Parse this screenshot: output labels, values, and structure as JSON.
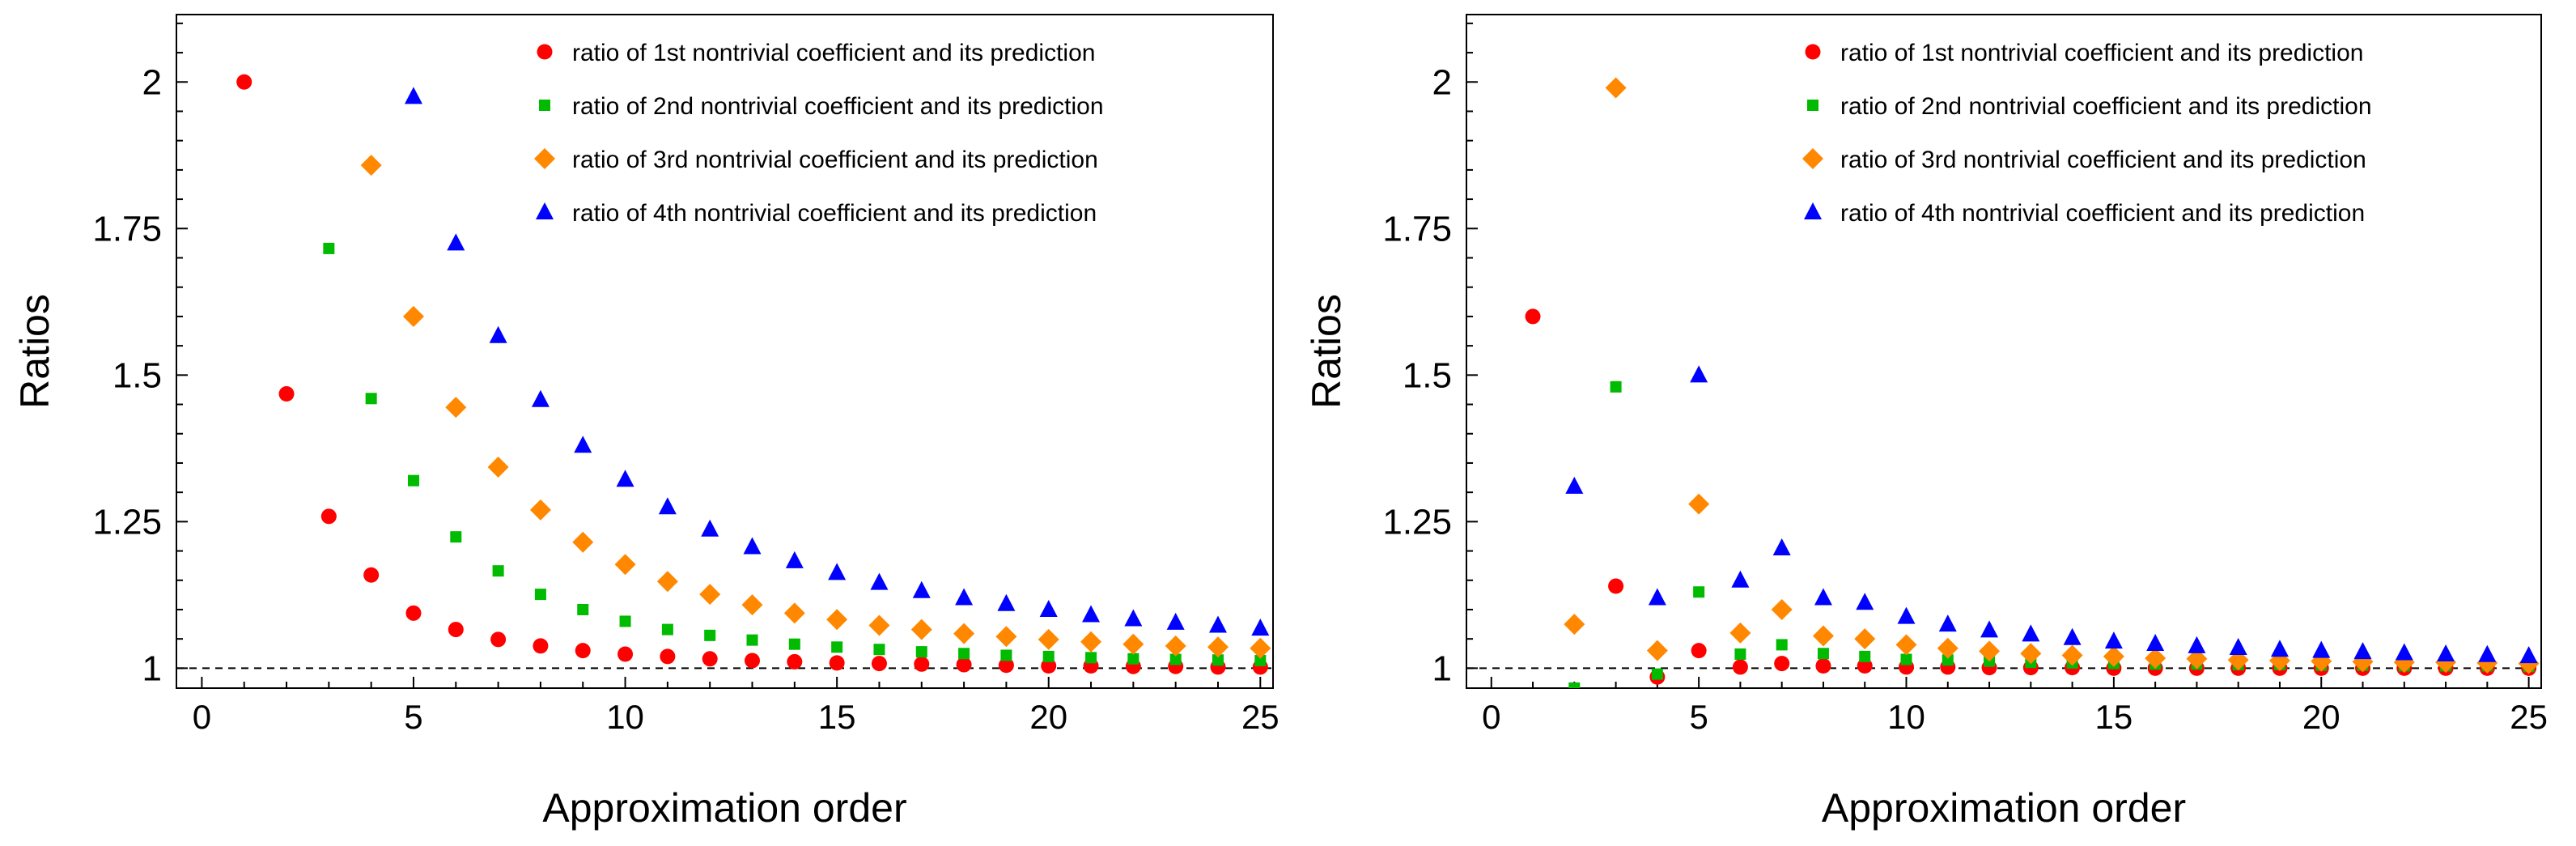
{
  "figure": {
    "description_panels": 2
  },
  "chart_data": [
    {
      "type": "scatter",
      "panel": "left",
      "title": "",
      "xlabel": "Approximation order",
      "ylabel": "Ratios",
      "xlim": [
        -0.6,
        25.3
      ],
      "ylim": [
        0.966,
        2.115
      ],
      "xticks": [
        0,
        5,
        10,
        15,
        20,
        25
      ],
      "xtick_labels": [
        "0",
        "5",
        "10",
        "15",
        "20",
        "25"
      ],
      "yticks": [
        1,
        1.25,
        1.5,
        1.75,
        2
      ],
      "ytick_labels": [
        "1",
        "1.25",
        "1.5",
        "1.75",
        "2"
      ],
      "reference_line": {
        "y": 1,
        "style": "dashed"
      },
      "legend_position": "top-right",
      "series": [
        {
          "name": "ratio of 1st nontrivial coefficient and its prediction",
          "marker": "circle",
          "color": "#ff0000",
          "x": [
            1,
            2,
            3,
            4,
            5,
            6,
            7,
            8,
            9,
            10,
            11,
            12,
            13,
            14,
            15,
            16,
            17,
            18,
            19,
            20,
            21,
            22,
            23,
            24,
            25
          ],
          "y": [
            2.0,
            1.468,
            1.259,
            1.159,
            1.094,
            1.066,
            1.049,
            1.038,
            1.03,
            1.024,
            1.02,
            1.016,
            1.013,
            1.011,
            1.009,
            1.008,
            1.007,
            1.006,
            1.005,
            1.004,
            1.004,
            1.003,
            1.003,
            1.002,
            1.002
          ]
        },
        {
          "name": "ratio of 2nd nontrivial coefficient and its prediction",
          "marker": "square",
          "color": "#00bb00",
          "x": [
            3,
            4,
            5,
            6,
            7,
            8,
            9,
            10,
            11,
            12,
            13,
            14,
            15,
            16,
            17,
            18,
            19,
            20,
            21,
            22,
            23,
            24,
            25
          ],
          "y": [
            1.716,
            1.46,
            1.32,
            1.224,
            1.166,
            1.126,
            1.1,
            1.08,
            1.066,
            1.056,
            1.048,
            1.041,
            1.036,
            1.032,
            1.028,
            1.025,
            1.022,
            1.02,
            1.018,
            1.016,
            1.015,
            1.014,
            1.013
          ]
        },
        {
          "name": "ratio of 3rd nontrivial coefficient and its prediction",
          "marker": "diamond",
          "color": "#ff8800",
          "x": [
            4,
            5,
            6,
            7,
            8,
            9,
            10,
            11,
            12,
            13,
            14,
            15,
            16,
            17,
            18,
            19,
            20,
            21,
            22,
            23,
            24,
            25
          ],
          "y": [
            1.858,
            1.6,
            1.445,
            1.343,
            1.27,
            1.215,
            1.177,
            1.148,
            1.126,
            1.108,
            1.094,
            1.083,
            1.073,
            1.066,
            1.059,
            1.054,
            1.049,
            1.045,
            1.041,
            1.038,
            1.036,
            1.034
          ]
        },
        {
          "name": "ratio of 4th nontrivial coefficient and its prediction",
          "marker": "triangle",
          "color": "#0000ff",
          "x": [
            5,
            6,
            7,
            8,
            9,
            10,
            11,
            12,
            13,
            14,
            15,
            16,
            17,
            18,
            19,
            20,
            21,
            22,
            23,
            24,
            25
          ],
          "y": [
            1.975,
            1.725,
            1.567,
            1.458,
            1.38,
            1.322,
            1.275,
            1.237,
            1.207,
            1.183,
            1.163,
            1.146,
            1.132,
            1.12,
            1.11,
            1.1,
            1.091,
            1.084,
            1.078,
            1.073,
            1.068
          ]
        }
      ]
    },
    {
      "type": "scatter",
      "panel": "right",
      "title": "",
      "xlabel": "Approximation order",
      "ylabel": "Ratios",
      "xlim": [
        -0.6,
        25.3
      ],
      "ylim": [
        0.966,
        2.115
      ],
      "xticks": [
        0,
        5,
        10,
        15,
        20,
        25
      ],
      "xtick_labels": [
        "0",
        "5",
        "10",
        "15",
        "20",
        "25"
      ],
      "yticks": [
        1,
        1.25,
        1.5,
        1.75,
        2
      ],
      "ytick_labels": [
        "1",
        "1.25",
        "1.5",
        "1.75",
        "2"
      ],
      "reference_line": {
        "y": 1,
        "style": "dashed"
      },
      "legend_position": "top-right",
      "series": [
        {
          "name": "ratio of 1st nontrivial coefficient and its prediction",
          "marker": "circle",
          "color": "#ff0000",
          "x": [
            1,
            3,
            4,
            5,
            6,
            7,
            8,
            9,
            10,
            11,
            12,
            13,
            14,
            15,
            16,
            17,
            18,
            19,
            20,
            21,
            22,
            23,
            24,
            25
          ],
          "y": [
            1.6,
            1.14,
            0.985,
            1.03,
            1.002,
            1.008,
            1.004,
            1.004,
            1.002,
            1.002,
            1.001,
            1.001,
            1.001,
            1.0,
            1.0,
            1.0,
            1.0,
            1.0,
            1.0,
            1.0,
            1.0,
            1.0,
            1.0,
            1.0
          ]
        },
        {
          "name": "ratio of 2nd nontrivial coefficient and its prediction",
          "marker": "square",
          "color": "#00bb00",
          "x": [
            2,
            3,
            4,
            5,
            6,
            7,
            8,
            9,
            10,
            11,
            12,
            13,
            14,
            15,
            16,
            17,
            18,
            19,
            20,
            21,
            22,
            23,
            24,
            25
          ],
          "y": [
            0.966,
            1.48,
            0.99,
            1.13,
            1.024,
            1.04,
            1.025,
            1.02,
            1.015,
            1.014,
            1.012,
            1.01,
            1.009,
            1.008,
            1.007,
            1.007,
            1.006,
            1.006,
            1.005,
            1.005,
            1.004,
            1.004,
            1.004,
            1.003
          ]
        },
        {
          "name": "ratio of 3rd nontrivial coefficient and its prediction",
          "marker": "diamond",
          "color": "#ff8800",
          "x": [
            2,
            3,
            4,
            5,
            6,
            7,
            8,
            9,
            10,
            11,
            12,
            13,
            14,
            15,
            16,
            17,
            18,
            19,
            20,
            21,
            22,
            23,
            24,
            25
          ],
          "y": [
            1.075,
            1.99,
            1.03,
            1.28,
            1.06,
            1.1,
            1.055,
            1.05,
            1.04,
            1.034,
            1.029,
            1.025,
            1.022,
            1.02,
            1.017,
            1.016,
            1.014,
            1.013,
            1.012,
            1.011,
            1.01,
            1.01,
            1.009,
            1.008
          ]
        },
        {
          "name": "ratio of 4th nontrivial coefficient and its prediction",
          "marker": "triangle",
          "color": "#0000ff",
          "x": [
            2,
            4,
            5,
            6,
            7,
            8,
            9,
            10,
            11,
            12,
            13,
            14,
            15,
            16,
            17,
            18,
            19,
            20,
            21,
            22,
            23,
            24,
            25
          ],
          "y": [
            1.31,
            1.12,
            1.5,
            1.15,
            1.205,
            1.12,
            1.112,
            1.088,
            1.075,
            1.065,
            1.058,
            1.052,
            1.046,
            1.042,
            1.038,
            1.035,
            1.032,
            1.03,
            1.028,
            1.026,
            1.024,
            1.023,
            1.021
          ]
        }
      ]
    }
  ]
}
